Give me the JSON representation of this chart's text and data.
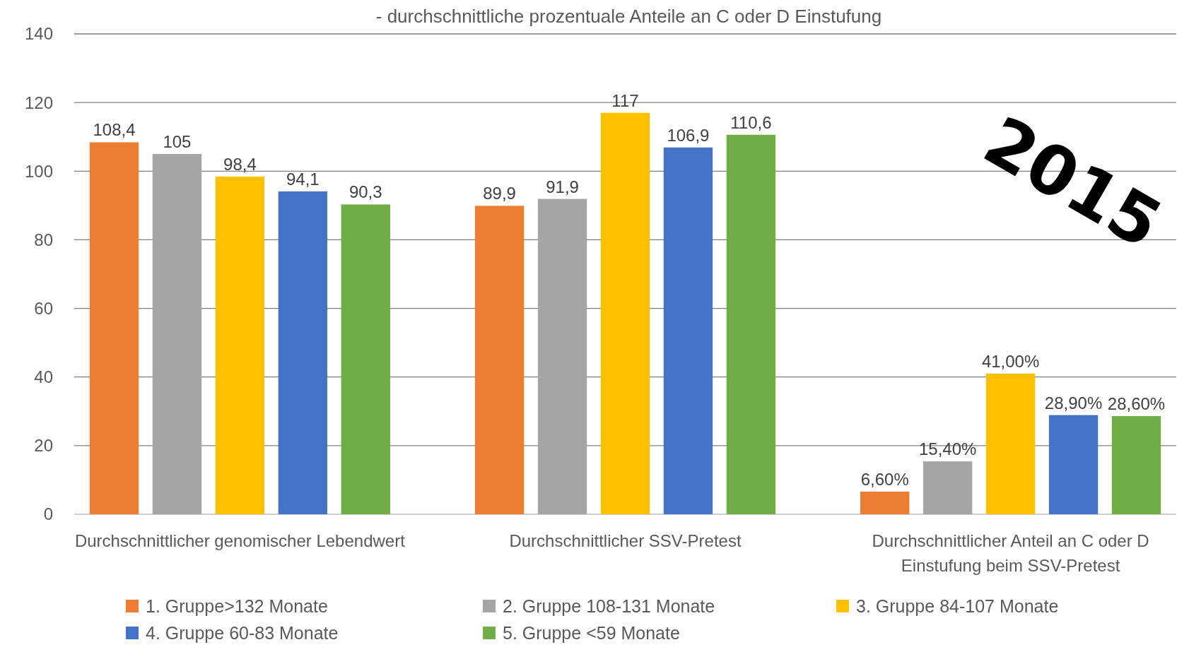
{
  "chart_data": {
    "type": "bar",
    "title": "- durchschnittliche prozentuale Anteile an C oder D Einstufung",
    "categories": [
      "Durchschnittlicher genomischer Lebendwert",
      "Durchschnittlicher SSV-Pretest",
      "Durchschnittlicher Anteil an C oder D Einstufung beim SSV-Pretest"
    ],
    "series": [
      {
        "name": "1. Gruppe>132 Monate",
        "color": "#ed7d31",
        "values": [
          108.4,
          89.9,
          6.6
        ],
        "value_labels": [
          "108,4",
          "89,9",
          "6,60%"
        ]
      },
      {
        "name": "2. Gruppe 108-131 Monate",
        "color": "#a5a5a5",
        "values": [
          105,
          91.9,
          15.4
        ],
        "value_labels": [
          "105",
          "91,9",
          "15,40%"
        ]
      },
      {
        "name": "3. Gruppe 84-107 Monate",
        "color": "#ffc000",
        "values": [
          98.4,
          117,
          41
        ],
        "value_labels": [
          "98,4",
          "117",
          "41,00%"
        ]
      },
      {
        "name": "4. Gruppe 60-83 Monate",
        "color": "#4472c4",
        "values": [
          94.1,
          106.9,
          28.9
        ],
        "value_labels": [
          "94,1",
          "106,9",
          "28,90%"
        ]
      },
      {
        "name": "5. Gruppe <59 Monate",
        "color": "#70ad47",
        "values": [
          90.3,
          110.6,
          28.6
        ],
        "value_labels": [
          "90,3",
          "110,6",
          "28,60%"
        ]
      }
    ],
    "ylim": [
      0,
      140
    ],
    "yticks": [
      0,
      20,
      40,
      60,
      80,
      100,
      120,
      140
    ],
    "grid": "y",
    "legend": "bottom",
    "annotations": [
      "2015"
    ]
  }
}
